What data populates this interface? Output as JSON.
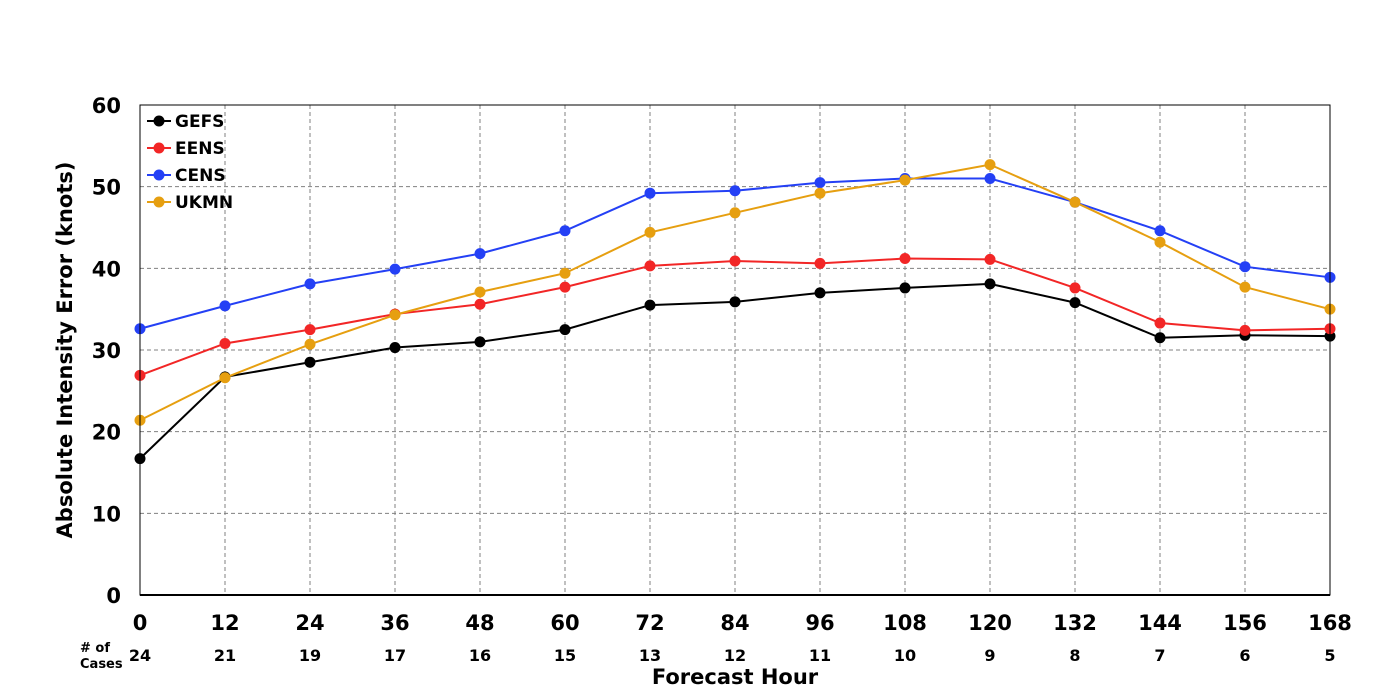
{
  "chart_data": {
    "type": "line",
    "xlabel": "Forecast Hour",
    "ylabel": "Absolute Intensity Error (knots)",
    "cases_label": [
      "# of",
      "Cases"
    ],
    "x": [
      0,
      12,
      24,
      36,
      48,
      60,
      72,
      84,
      96,
      108,
      120,
      132,
      144,
      156,
      168
    ],
    "cases": [
      24,
      21,
      19,
      17,
      16,
      15,
      13,
      12,
      11,
      10,
      9,
      8,
      7,
      6,
      5
    ],
    "xlim": [
      0,
      168
    ],
    "ylim": [
      0,
      60
    ],
    "yticks": [
      0,
      10,
      20,
      30,
      40,
      50,
      60
    ],
    "grid": true,
    "legend_position": "top-left",
    "series": [
      {
        "name": "GEFS",
        "color": "#000000",
        "values": [
          16.7,
          26.7,
          28.5,
          30.3,
          31.0,
          32.5,
          35.5,
          35.9,
          37.0,
          37.6,
          38.1,
          35.8,
          31.5,
          31.8,
          31.7
        ]
      },
      {
        "name": "EENS",
        "color": "#f22626",
        "values": [
          26.9,
          30.8,
          32.5,
          34.4,
          35.6,
          37.7,
          40.3,
          40.9,
          40.6,
          41.2,
          41.1,
          37.6,
          33.3,
          32.4,
          32.6
        ]
      },
      {
        "name": "CENS",
        "color": "#2440f5",
        "values": [
          32.6,
          35.4,
          38.1,
          39.9,
          41.8,
          44.6,
          49.2,
          49.5,
          50.5,
          51.0,
          51.0,
          48.1,
          44.6,
          40.2,
          38.9
        ]
      },
      {
        "name": "UKMN",
        "color": "#e69f10",
        "values": [
          21.4,
          26.6,
          30.7,
          34.3,
          37.1,
          39.4,
          44.4,
          46.8,
          49.2,
          50.8,
          52.7,
          48.1,
          43.2,
          37.7,
          35.0
        ]
      }
    ]
  }
}
